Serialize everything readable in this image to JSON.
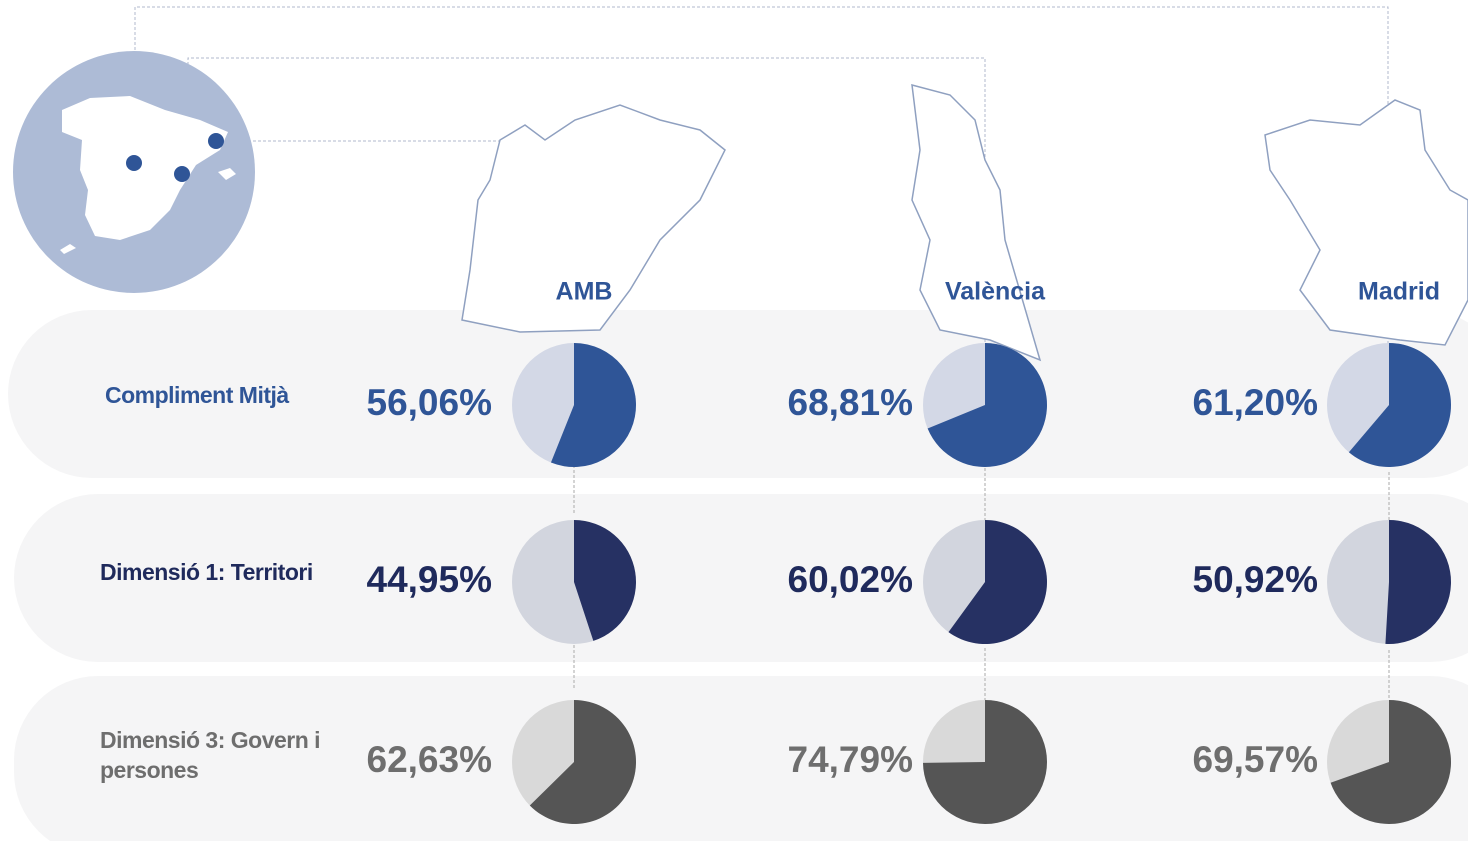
{
  "cities": [
    "AMB",
    "València",
    "Madrid"
  ],
  "rows": [
    {
      "label": "Compliment Mitjà",
      "values": [
        56.06,
        68.81,
        61.2
      ],
      "value_labels": [
        "56,06%",
        "68,81%",
        "61,20%"
      ],
      "color": "#2f5597",
      "rest_color": "#d3d8e6",
      "text_color": "#2f5597"
    },
    {
      "label": "Dimensió 1: Territori",
      "values": [
        44.95,
        60.02,
        50.92
      ],
      "value_labels": [
        "44,95%",
        "60,02%",
        "50,92%"
      ],
      "color": "#263163",
      "rest_color": "#d2d5de",
      "text_color": "#1f2a5c"
    },
    {
      "label": "Dimensió 3: Govern i persones",
      "values": [
        62.63,
        74.79,
        69.57
      ],
      "value_labels": [
        "62,63%",
        "74,79%",
        "69,57%"
      ],
      "color": "#555555",
      "rest_color": "#d9d9d9",
      "text_color": "#6e6e6e"
    }
  ]
}
